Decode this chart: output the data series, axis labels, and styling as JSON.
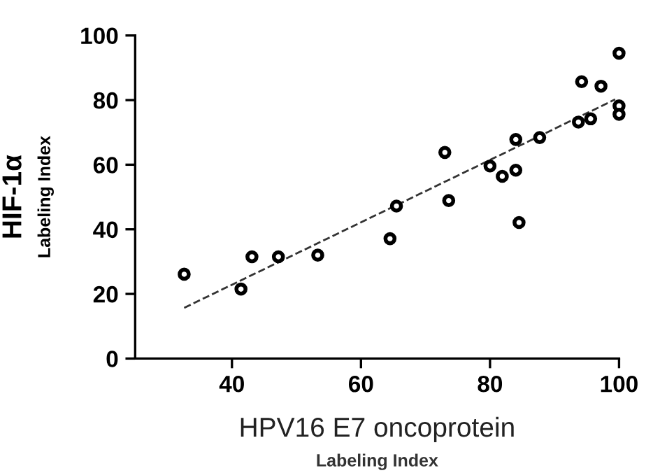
{
  "chart_data": {
    "type": "scatter",
    "xlabel": "HPV16 E7 oncoprotein\nLabeling Index",
    "ylabel": "HIF-1α\nLabeling Index",
    "series": [
      {
        "color": "#000000",
        "marker": "circle",
        "x": [
          32.6,
          41.4,
          43.1,
          47.2,
          53.3,
          64.5,
          65.5,
          73.0,
          73.6,
          80.0,
          81.9,
          84.0,
          84.0,
          84.5,
          87.7,
          93.7,
          94.2,
          95.6,
          97.2,
          100,
          100,
          100
        ],
        "values": [
          26.1,
          21.5,
          31.5,
          31.5,
          32.0,
          37.1,
          47.2,
          63.8,
          48.9,
          59.6,
          56.4,
          67.8,
          58.3,
          42.1,
          68.4,
          73.2,
          85.7,
          74.2,
          84.3,
          94.5,
          78.2,
          75.6
        ]
      },
      {
        "type": "line",
        "color": "#333333",
        "line_style": "dashed",
        "x": [
          32.6,
          99.4
        ],
        "values": [
          15.7,
          80.2
        ]
      }
    ],
    "xlim": [
      25,
      100
    ],
    "ylim": [
      0,
      100
    ],
    "xticks": [
      40,
      60,
      80,
      100
    ],
    "yticks": [
      0,
      20,
      40,
      60,
      80,
      100
    ],
    "grid": false,
    "legend": false
  }
}
